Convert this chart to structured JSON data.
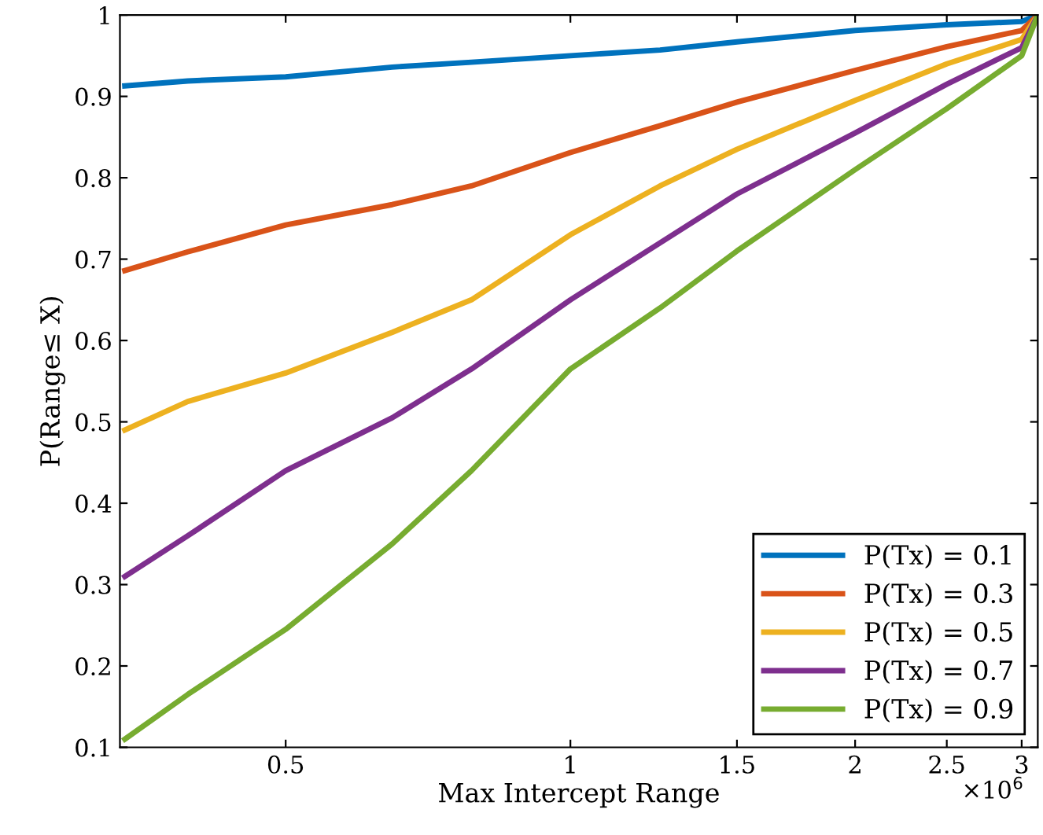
{
  "chart_data": {
    "type": "line",
    "xlabel": "Max Intercept Range",
    "ylabel": "P(Range≤ X)",
    "log": "x",
    "xlim": [
      0.334,
      3.12
    ],
    "ylim": [
      0.1,
      1
    ],
    "xticks": [
      0.5,
      1,
      1.5,
      2,
      2.5,
      3
    ],
    "yticks": [
      0.1,
      0.2,
      0.3,
      0.4,
      0.5,
      0.6,
      0.7,
      0.8,
      0.9,
      1
    ],
    "x": [
      0.338,
      0.394,
      0.5,
      0.648,
      0.786,
      1,
      1.244,
      1.5,
      2,
      2.5,
      3,
      3.12
    ],
    "series": [
      {
        "name": "P(Tx) = 0.1",
        "color": "#0072bd",
        "values": [
          0.913,
          0.919,
          0.924,
          0.936,
          0.942,
          0.95,
          0.957,
          0.967,
          0.981,
          0.988,
          0.992,
          1
        ]
      },
      {
        "name": "P(Tx) = 0.3",
        "color": "#d95319",
        "values": [
          0.686,
          0.709,
          0.742,
          0.767,
          0.79,
          0.831,
          0.864,
          0.893,
          0.932,
          0.961,
          0.981,
          1
        ]
      },
      {
        "name": "P(Tx) = 0.5",
        "color": "#edb120",
        "values": [
          0.49,
          0.525,
          0.56,
          0.61,
          0.65,
          0.73,
          0.79,
          0.835,
          0.895,
          0.94,
          0.97,
          1
        ]
      },
      {
        "name": "P(Tx) = 0.7",
        "color": "#7e2f8e",
        "values": [
          0.31,
          0.36,
          0.44,
          0.505,
          0.565,
          0.65,
          0.72,
          0.78,
          0.855,
          0.915,
          0.96,
          1
        ]
      },
      {
        "name": "P(Tx) = 0.9",
        "color": "#77ac30",
        "values": [
          0.11,
          0.165,
          0.245,
          0.35,
          0.44,
          0.565,
          0.64,
          0.71,
          0.81,
          0.885,
          0.95,
          1
        ]
      }
    ],
    "annotations": [
      "×10$^{6}$"
    ],
    "legend": "bottom right",
    "grid": false
  }
}
